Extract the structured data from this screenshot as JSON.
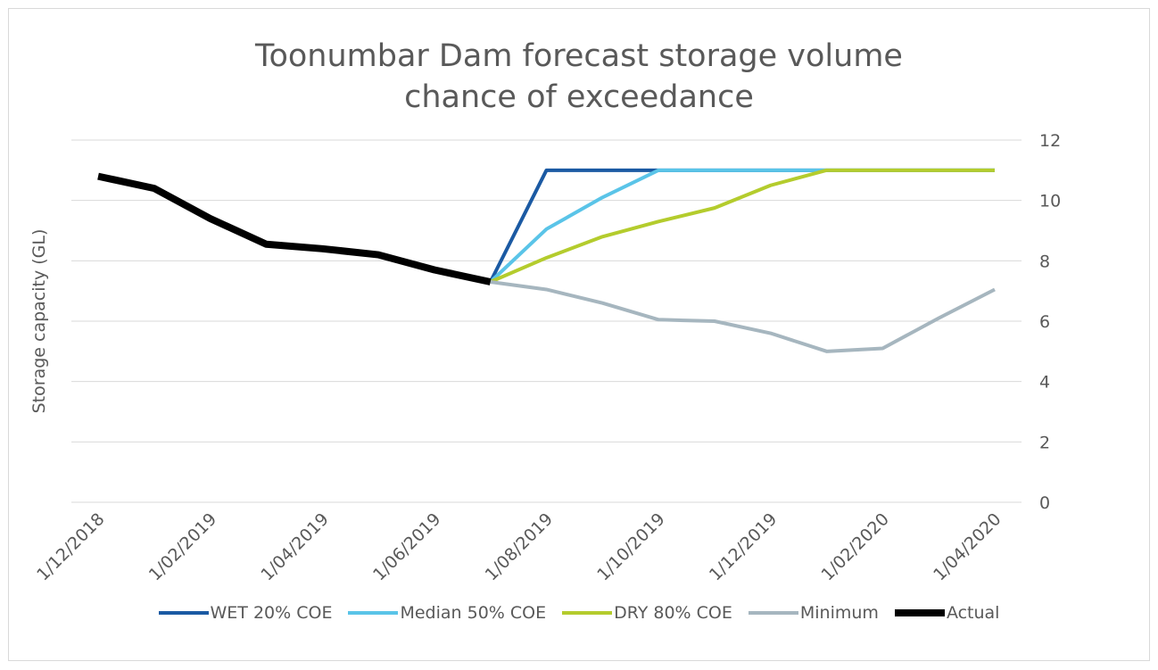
{
  "chart_data": {
    "type": "line",
    "title": "Toonumbar Dam forecast storage volume chance of exceedance",
    "y_label": "Storage capacity (GL)",
    "categories": [
      "1/12/2018",
      null,
      "1/02/2019",
      null,
      "1/04/2019",
      null,
      "1/06/2019",
      null,
      "1/08/2019",
      null,
      "1/10/2019",
      null,
      "1/12/2019",
      null,
      "1/02/2020",
      null,
      "1/04/2020"
    ],
    "series": [
      {
        "name": "WET 20% COE",
        "color": "#1b5aa3",
        "values": [
          null,
          null,
          null,
          null,
          null,
          null,
          null,
          7.3,
          11,
          11,
          11,
          11,
          11,
          11,
          11,
          11,
          11
        ]
      },
      {
        "name": "Median 50% COE",
        "color": "#5ac4e8",
        "values": [
          null,
          null,
          null,
          null,
          null,
          null,
          null,
          7.3,
          9.05,
          10.1,
          11,
          11,
          11,
          11,
          11,
          11,
          11
        ]
      },
      {
        "name": "DRY 80% COE",
        "color": "#b4cc2d",
        "values": [
          null,
          null,
          null,
          null,
          null,
          null,
          null,
          7.3,
          8.1,
          8.8,
          9.3,
          9.75,
          10.5,
          11,
          11,
          11,
          11
        ]
      },
      {
        "name": "Minimum",
        "color": "#a6b6bf",
        "values": [
          null,
          null,
          null,
          null,
          null,
          null,
          null,
          7.3,
          7.05,
          6.6,
          6.05,
          6.0,
          5.6,
          5.0,
          5.1,
          6.1,
          7.05
        ]
      },
      {
        "name": "Actual",
        "color": "#000000",
        "values": [
          10.8,
          10.4,
          9.4,
          8.55,
          8.4,
          8.2,
          7.7,
          7.3,
          null,
          null,
          null,
          null,
          null,
          null,
          null,
          null,
          null
        ]
      }
    ],
    "ylim": [
      0,
      12
    ],
    "yticks": [
      0,
      2,
      4,
      6,
      8,
      10,
      12
    ],
    "y_axis_side": "right",
    "grid": true,
    "legend": "bottom"
  }
}
